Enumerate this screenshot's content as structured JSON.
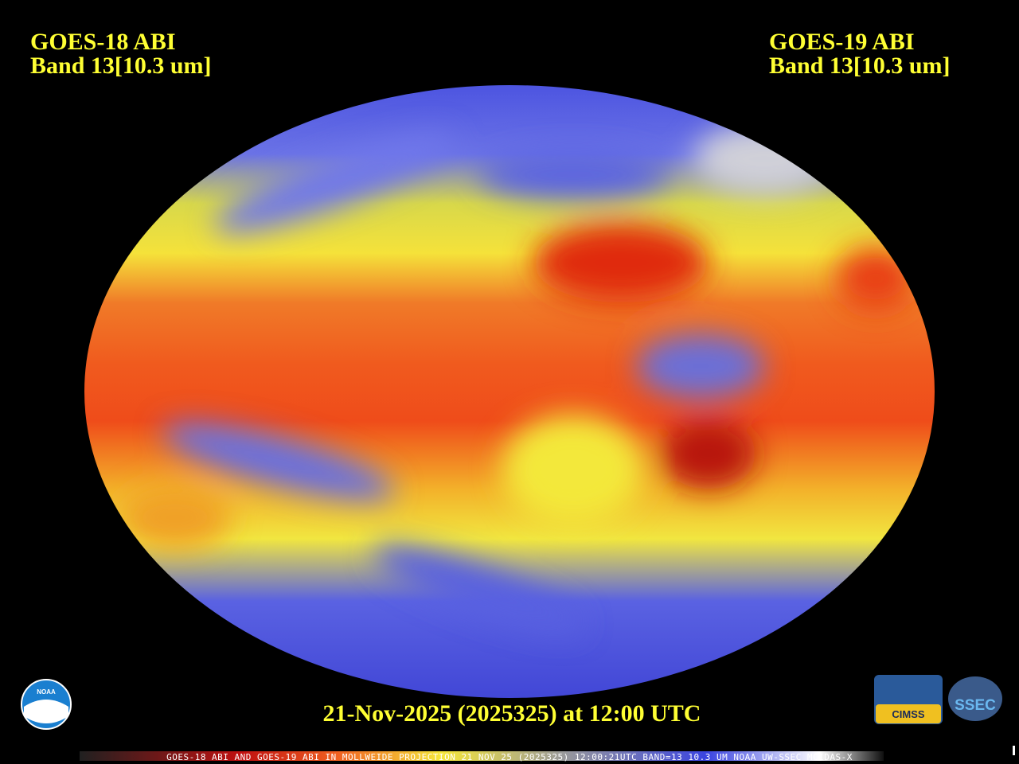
{
  "header": {
    "left": {
      "line1": "GOES-18 ABI",
      "line2": "Band 13[10.3 um]"
    },
    "right": {
      "line1": "GOES-19 ABI",
      "line2": "Band 13[10.3 um]"
    }
  },
  "date_caption": "21-Nov-2025 (2025325) at 12:00 UTC",
  "footer": "GOES-18 ABI AND GOES-19 ABI IN MOLLWEIDE PROJECTION 21 NOV 25 (2025325) 12:00:21UTC BAND=13 10.3 UM NOAA UW-SSEC MCIDAS-X",
  "logos": {
    "noaa": "NOAA",
    "cimss": "CIMSS",
    "ssec": "SSEC"
  }
}
